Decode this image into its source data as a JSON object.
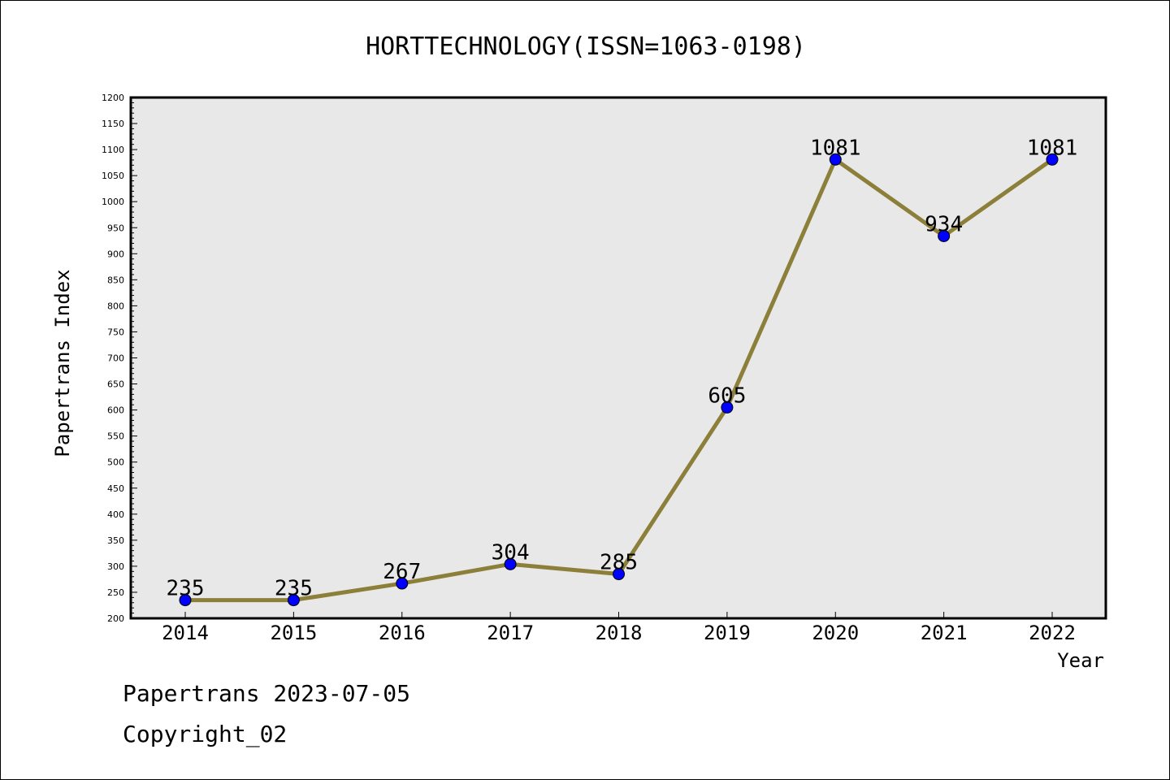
{
  "chart_data": {
    "type": "line",
    "title": "HORTTECHNOLOGY(ISSN=1063-0198)",
    "xlabel": "Year",
    "ylabel": "Papertrans Index",
    "categories": [
      "2014",
      "2015",
      "2016",
      "2017",
      "2018",
      "2019",
      "2020",
      "2021",
      "2022"
    ],
    "series": [
      {
        "values": [
          235,
          235,
          267,
          304,
          285,
          605,
          1081,
          934,
          1081
        ]
      }
    ],
    "ylim": [
      200,
      1200
    ],
    "y_major_step": 50,
    "y_minor_step": 10,
    "grid": false,
    "colors": {
      "line": "#8c7f3a",
      "marker": "#0000ff",
      "plot_bg": "#e8e8e8"
    }
  },
  "footer": {
    "date_line": "Papertrans 2023-07-05",
    "copyright": "Copyright_02"
  }
}
